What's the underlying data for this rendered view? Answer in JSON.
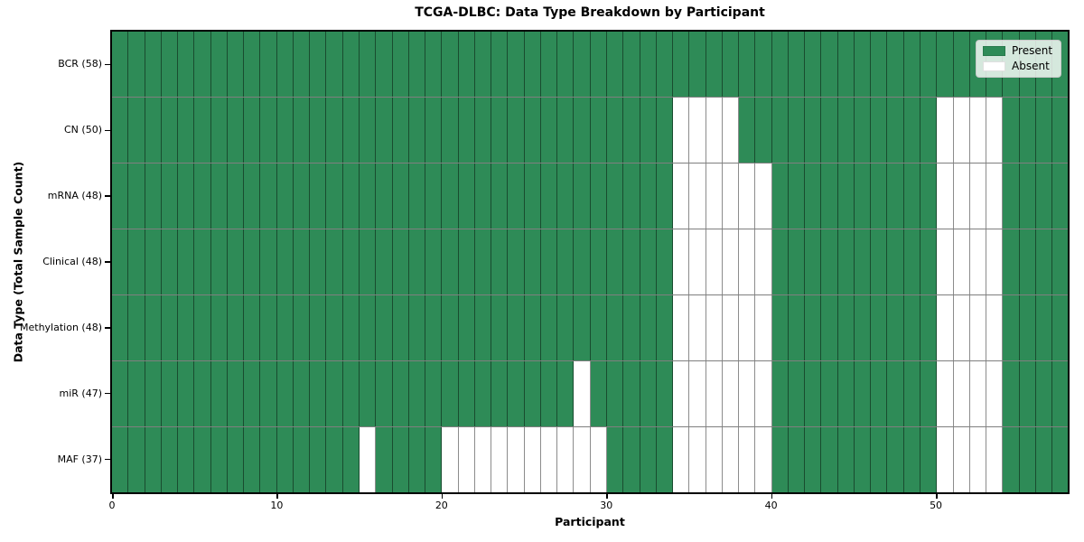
{
  "chart_data": {
    "type": "heatmap",
    "title": "TCGA-DLBC: Data Type Breakdown by Participant",
    "xlabel": "Participant",
    "ylabel": "Data Type (Total Sample Count)",
    "n_participants": 58,
    "x_range": [
      0,
      58
    ],
    "x_ticks": [
      0,
      10,
      20,
      30,
      40,
      50
    ],
    "grid": true,
    "legend_position": "upper right",
    "legend": [
      {
        "label": "Present",
        "color": "#2e8b57"
      },
      {
        "label": "Absent",
        "color": "#ffffff"
      }
    ],
    "rows": [
      {
        "label": "BCR (58)",
        "data_type": "BCR",
        "total_samples": 58,
        "absent_participants": []
      },
      {
        "label": "CN (50)",
        "data_type": "CN",
        "total_samples": 50,
        "absent_participants": [
          34,
          35,
          36,
          37,
          50,
          51,
          52,
          53
        ]
      },
      {
        "label": "mRNA (48)",
        "data_type": "mRNA",
        "total_samples": 48,
        "absent_participants": [
          34,
          35,
          36,
          37,
          38,
          39,
          50,
          51,
          52,
          53
        ]
      },
      {
        "label": "Clinical (48)",
        "data_type": "Clinical",
        "total_samples": 48,
        "absent_participants": [
          34,
          35,
          36,
          37,
          38,
          39,
          50,
          51,
          52,
          53
        ]
      },
      {
        "label": "Methylation (48)",
        "data_type": "Methylation",
        "total_samples": 48,
        "absent_participants": [
          34,
          35,
          36,
          37,
          38,
          39,
          50,
          51,
          52,
          53
        ]
      },
      {
        "label": "miR (47)",
        "data_type": "miR",
        "total_samples": 47,
        "absent_participants": [
          28,
          34,
          35,
          36,
          37,
          38,
          39,
          50,
          51,
          52,
          53
        ]
      },
      {
        "label": "MAF (37)",
        "data_type": "MAF",
        "total_samples": 37,
        "absent_participants": [
          15,
          20,
          21,
          22,
          23,
          24,
          25,
          26,
          27,
          28,
          29,
          34,
          35,
          36,
          37,
          38,
          39,
          50,
          51,
          52,
          53
        ]
      }
    ]
  },
  "colors": {
    "present": "#2e8b57",
    "absent": "#ffffff",
    "grid_line": "rgba(0,0,0,0.45)"
  }
}
